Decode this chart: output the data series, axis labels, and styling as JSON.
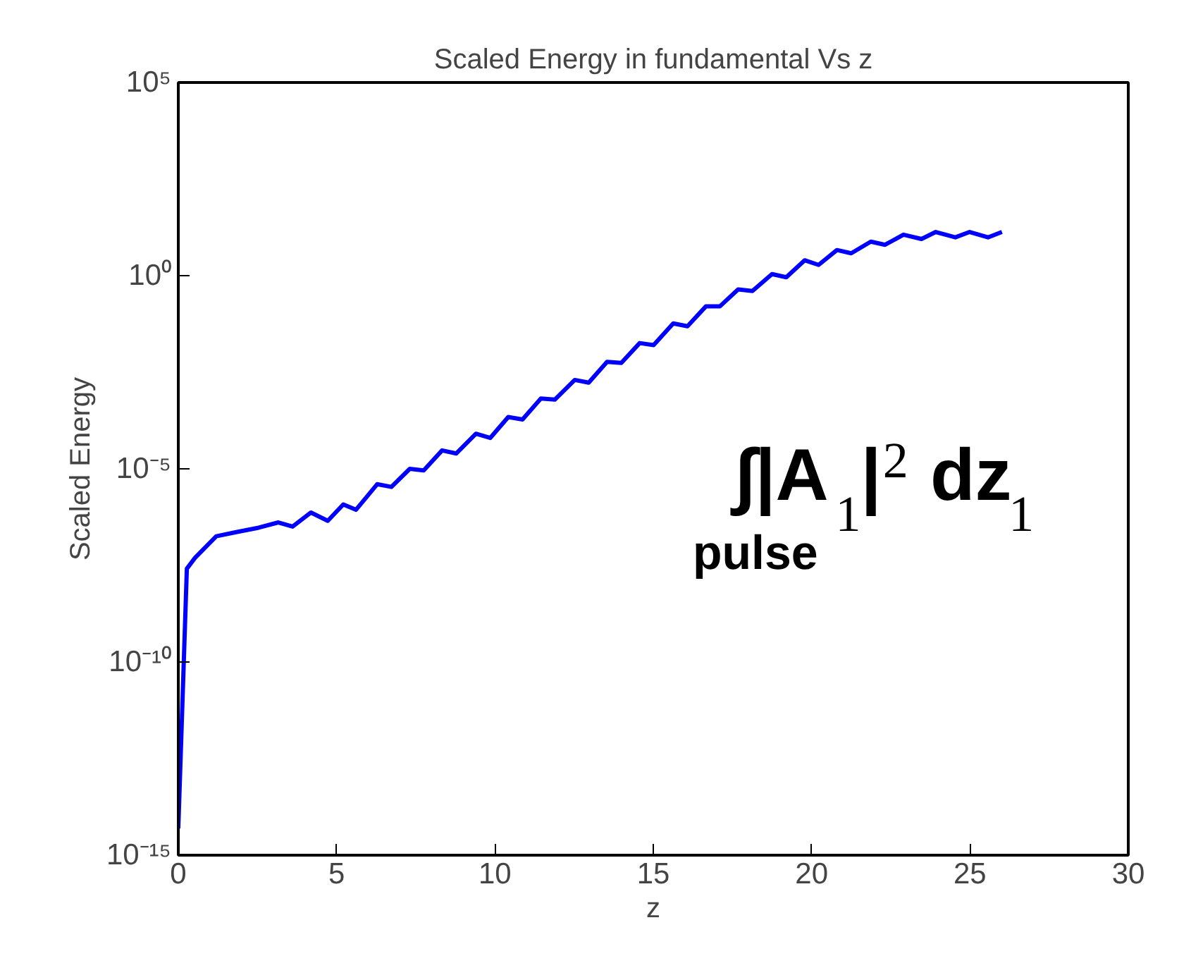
{
  "chart_data": {
    "type": "line",
    "title": "Scaled Energy in fundamental Vs z",
    "xlabel": "z",
    "ylabel": "Scaled Energy",
    "log": "y",
    "grid": false,
    "marker": "none",
    "line_style": "solid",
    "xlim": [
      0,
      30
    ],
    "xticks": [
      0,
      5,
      10,
      15,
      20,
      25,
      30
    ],
    "ylim": [
      1e-15,
      100000.0
    ],
    "yticks": [
      {
        "value": 1e-15,
        "label": "10⁻¹⁵"
      },
      {
        "value": 1e-10,
        "label": "10⁻¹⁰"
      },
      {
        "value": 1e-05,
        "label": "10⁻⁵"
      },
      {
        "value": 1,
        "label": "10⁰"
      },
      {
        "value": 100000.0,
        "label": "10⁵"
      }
    ],
    "x": [
      0,
      0.27,
      0.53,
      1.2,
      1.83,
      2.54,
      3.16,
      3.61,
      4.19,
      4.72,
      5.21,
      5.61,
      6.28,
      6.73,
      7.31,
      7.75,
      8.33,
      8.78,
      9.4,
      9.85,
      10.42,
      10.87,
      11.45,
      11.89,
      12.52,
      12.96,
      13.54,
      13.99,
      14.57,
      15.01,
      15.63,
      16.08,
      16.66,
      17.1,
      17.68,
      18.13,
      18.75,
      19.2,
      19.78,
      20.22,
      20.8,
      21.25,
      21.87,
      22.32,
      22.9,
      23.47,
      23.92,
      24.54,
      24.99,
      25.57,
      26.01
    ],
    "series": [
      {
        "color": "#0000ff",
        "values": [
          4.9e-15,
          2.6e-08,
          5e-08,
          1.8e-07,
          2.3e-07,
          3e-07,
          4.1e-07,
          3.2e-07,
          7.4e-07,
          4.5e-07,
          1.2e-06,
          8.7e-07,
          4e-06,
          3.4e-06,
          1e-05,
          9.1e-06,
          3e-05,
          2.5e-05,
          8.1e-05,
          6.3e-05,
          0.00022,
          0.00019,
          0.00066,
          0.00062,
          0.002,
          0.0017,
          0.0059,
          0.0055,
          0.018,
          0.016,
          0.058,
          0.049,
          0.16,
          0.16,
          0.44,
          0.4,
          1.1,
          0.91,
          2.5,
          1.9,
          4.6,
          3.8,
          7.6,
          6.3,
          11.5,
          8.9,
          13.5,
          9.8,
          13.5,
          9.8,
          13.5
        ]
      }
    ],
    "annotations": [
      "∫|A$_{1}$|$^{2}$ dz$_{1}$",
      "pulse"
    ]
  }
}
